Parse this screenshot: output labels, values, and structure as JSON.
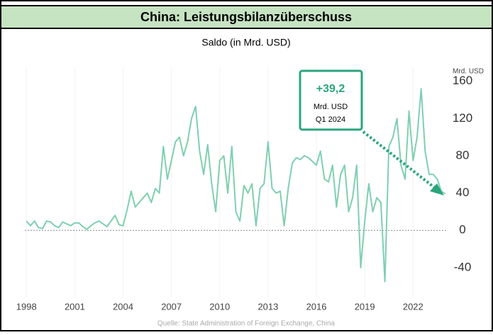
{
  "chart_data": {
    "type": "line",
    "title": "China: Leistungsbilanzüberschuss",
    "subtitle": "Saldo (in Mrd. USD)",
    "y_unit": "Mrd. USD",
    "source": "Quelle: State Administration of Foreign Exchange, China",
    "annotation": {
      "value_label": "+39,2",
      "unit": "Mrd. USD",
      "period": "Q1 2024"
    },
    "color": "#7fcfb0",
    "x": [
      1998,
      1998.25,
      1998.5,
      1998.75,
      1999,
      1999.25,
      1999.5,
      1999.75,
      2000,
      2000.25,
      2000.5,
      2000.75,
      2001,
      2001.25,
      2001.5,
      2001.75,
      2002,
      2002.25,
      2002.5,
      2002.75,
      2003,
      2003.25,
      2003.5,
      2003.75,
      2004,
      2004.25,
      2004.5,
      2004.75,
      2005,
      2005.25,
      2005.5,
      2005.75,
      2006,
      2006.25,
      2006.5,
      2006.75,
      2007,
      2007.25,
      2007.5,
      2007.75,
      2008,
      2008.25,
      2008.5,
      2008.75,
      2009,
      2009.25,
      2009.5,
      2009.75,
      2010,
      2010.25,
      2010.5,
      2010.75,
      2011,
      2011.25,
      2011.5,
      2011.75,
      2012,
      2012.25,
      2012.5,
      2012.75,
      2013,
      2013.25,
      2013.5,
      2013.75,
      2014,
      2014.25,
      2014.5,
      2014.75,
      2015,
      2015.25,
      2015.5,
      2015.75,
      2016,
      2016.25,
      2016.5,
      2016.75,
      2017,
      2017.25,
      2017.5,
      2017.75,
      2018,
      2018.25,
      2018.5,
      2018.75,
      2019,
      2019.25,
      2019.5,
      2019.75,
      2020,
      2020.25,
      2020.5,
      2020.75,
      2021,
      2021.25,
      2021.5,
      2021.75,
      2022,
      2022.25,
      2022.5,
      2022.75,
      2023,
      2023.25,
      2023.5,
      2023.75,
      2024
    ],
    "values": [
      10,
      5,
      10,
      3,
      2,
      10,
      9,
      5,
      3,
      9,
      7,
      5,
      8,
      8,
      4,
      1,
      5,
      8,
      10,
      7,
      4,
      10,
      16,
      6,
      5,
      22,
      42,
      25,
      30,
      35,
      40,
      30,
      45,
      40,
      90,
      55,
      75,
      95,
      100,
      80,
      95,
      120,
      133,
      85,
      60,
      92,
      50,
      20,
      75,
      80,
      40,
      90,
      20,
      10,
      48,
      40,
      50,
      5,
      45,
      50,
      95,
      45,
      40,
      42,
      5,
      45,
      72,
      78,
      76,
      80,
      78,
      74,
      70,
      85,
      55,
      52,
      70,
      25,
      60,
      70,
      20,
      35,
      70,
      -40,
      10,
      50,
      20,
      35,
      30,
      -55,
      90,
      100,
      120,
      70,
      55,
      128,
      75,
      100,
      152,
      85,
      60,
      60,
      55,
      42,
      39.2
    ],
    "xlim": [
      1997.9,
      2024.1
    ],
    "xticks": [
      1998,
      2001,
      2004,
      2007,
      2010,
      2013,
      2016,
      2019,
      2022
    ],
    "ylim": [
      -72,
      175
    ],
    "yticks": [
      -40,
      0,
      40,
      80,
      120,
      160
    ]
  }
}
